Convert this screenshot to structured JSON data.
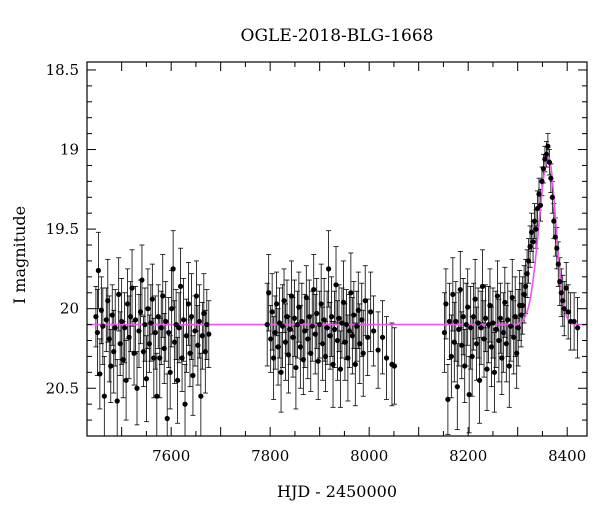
{
  "chart_data": {
    "type": "scatter",
    "title": "OGLE-2018-BLG-1668",
    "xlabel": "HJD - 2450000",
    "ylabel": "I magnitude",
    "xlim": [
      7430,
      8440
    ],
    "ylim": [
      20.8,
      18.45
    ],
    "y_inverted": true,
    "xticks": [
      7600,
      7800,
      8000,
      8200,
      8400
    ],
    "yticks": [
      18.5,
      19,
      19.5,
      20,
      20.5
    ],
    "xtick_labels": [
      "7600",
      "7800",
      "8000",
      "8200",
      "8400"
    ],
    "ytick_labels": [
      "18.5",
      "19",
      "19.5",
      "20",
      "20.5"
    ],
    "grid": false,
    "colors": {
      "data": "#000000",
      "model": "#ee55ee"
    },
    "model": {
      "type": "microlensing",
      "baseline_mag": 20.1,
      "peak_mag": 19.05,
      "peak_hjd": 8362,
      "rise_hjd": 8300,
      "end_hjd": 8420
    },
    "series": [
      {
        "type": "scatter",
        "points": [
          [
            7448,
            20.05,
            0.19
          ],
          [
            7451,
            20.15,
            0.27
          ],
          [
            7453,
            19.76,
            0.24
          ],
          [
            7456,
            20.41,
            0.22
          ],
          [
            7459,
            20.01,
            0.21
          ],
          [
            7462,
            20.11,
            0.24
          ],
          [
            7465,
            20.55,
            0.25
          ],
          [
            7469,
            20.07,
            0.2
          ],
          [
            7472,
            19.95,
            0.26
          ],
          [
            7475,
            20.19,
            0.27
          ],
          [
            7478,
            20.36,
            0.23
          ],
          [
            7481,
            20.04,
            0.19
          ],
          [
            7484,
            20.27,
            0.26
          ],
          [
            7487,
            20.12,
            0.24
          ],
          [
            7491,
            20.58,
            0.26
          ],
          [
            7494,
            19.91,
            0.23
          ],
          [
            7497,
            20.22,
            0.2
          ],
          [
            7500,
            20.08,
            0.27
          ],
          [
            7503,
            20.32,
            0.24
          ],
          [
            7506,
            20.12,
            0.22
          ],
          [
            7509,
            20.45,
            0.25
          ],
          [
            7512,
            19.97,
            0.22
          ],
          [
            7515,
            20.18,
            0.26
          ],
          [
            7518,
            20.05,
            0.22
          ],
          [
            7521,
            19.87,
            0.24
          ],
          [
            7525,
            20.28,
            0.2
          ],
          [
            7528,
            20.07,
            0.21
          ],
          [
            7531,
            20.5,
            0.23
          ],
          [
            7535,
            20.14,
            0.23
          ],
          [
            7538,
            20.02,
            0.2
          ],
          [
            7541,
            19.82,
            0.22
          ],
          [
            7544,
            20.27,
            0.22
          ],
          [
            7547,
            20.1,
            0.23
          ],
          [
            7550,
            20.44,
            0.27
          ],
          [
            7553,
            20.0,
            0.25
          ],
          [
            7556,
            20.22,
            0.18
          ],
          [
            7559,
            20.09,
            0.24
          ],
          [
            7562,
            19.94,
            0.22
          ],
          [
            7565,
            20.31,
            0.25
          ],
          [
            7568,
            20.15,
            0.23
          ],
          [
            7571,
            20.55,
            0.27
          ],
          [
            7574,
            20.05,
            0.2
          ],
          [
            7577,
            20.31,
            0.25
          ],
          [
            7580,
            20.12,
            0.23
          ],
          [
            7583,
            19.92,
            0.26
          ],
          [
            7586,
            20.25,
            0.22
          ],
          [
            7589,
            20.08,
            0.25
          ],
          [
            7592,
            20.69,
            0.28
          ],
          [
            7595,
            20.15,
            0.22
          ],
          [
            7598,
            20.4,
            0.23
          ],
          [
            7601,
            20.0,
            0.24
          ],
          [
            7604,
            19.75,
            0.24
          ],
          [
            7607,
            20.21,
            0.26
          ],
          [
            7610,
            20.1,
            0.22
          ],
          [
            7613,
            20.45,
            0.27
          ],
          [
            7616,
            20.12,
            0.22
          ],
          [
            7619,
            19.86,
            0.24
          ],
          [
            7622,
            20.31,
            0.21
          ],
          [
            7625,
            20.07,
            0.26
          ],
          [
            7628,
            20.6,
            0.25
          ],
          [
            7631,
            20.17,
            0.23
          ],
          [
            7635,
            19.97,
            0.26
          ],
          [
            7638,
            20.28,
            0.21
          ],
          [
            7641,
            20.05,
            0.27
          ],
          [
            7644,
            20.42,
            0.25
          ],
          [
            7648,
            20.14,
            0.22
          ],
          [
            7651,
            19.92,
            0.22
          ],
          [
            7654,
            20.23,
            0.25
          ],
          [
            7657,
            20.08,
            0.23
          ],
          [
            7660,
            20.55,
            0.27
          ],
          [
            7663,
            20.17,
            0.21
          ],
          [
            7666,
            20.03,
            0.25
          ],
          [
            7669,
            20.27,
            0.26
          ],
          [
            7672,
            20.1,
            0.22
          ],
          [
            7676,
            20.16,
            0.21
          ],
          [
            7794,
            20.1,
            0.26
          ],
          [
            7797,
            19.9,
            0.24
          ],
          [
            7801,
            20.19,
            0.21
          ],
          [
            7804,
            20.02,
            0.24
          ],
          [
            7807,
            20.31,
            0.26
          ],
          [
            7810,
            20.15,
            0.23
          ],
          [
            7813,
            19.97,
            0.2
          ],
          [
            7816,
            20.24,
            0.24
          ],
          [
            7819,
            20.09,
            0.22
          ],
          [
            7822,
            20.4,
            0.25
          ],
          [
            7825,
            20.11,
            0.26
          ],
          [
            7828,
            19.95,
            0.2
          ],
          [
            7831,
            20.21,
            0.24
          ],
          [
            7834,
            20.05,
            0.23
          ],
          [
            7837,
            20.29,
            0.24
          ],
          [
            7840,
            20.13,
            0.22
          ],
          [
            7843,
            19.92,
            0.22
          ],
          [
            7846,
            20.18,
            0.25
          ],
          [
            7849,
            20.06,
            0.24
          ],
          [
            7852,
            20.37,
            0.26
          ],
          [
            7855,
            20.1,
            0.21
          ],
          [
            7858,
            19.99,
            0.22
          ],
          [
            7861,
            20.24,
            0.26
          ],
          [
            7864,
            20.08,
            0.24
          ],
          [
            7867,
            20.32,
            0.22
          ],
          [
            7870,
            20.14,
            0.23
          ],
          [
            7873,
            19.93,
            0.2
          ],
          [
            7876,
            20.19,
            0.25
          ],
          [
            7879,
            20.05,
            0.23
          ],
          [
            7882,
            20.28,
            0.24
          ],
          [
            7885,
            20.11,
            0.22
          ],
          [
            7888,
            19.88,
            0.22
          ],
          [
            7891,
            20.16,
            0.25
          ],
          [
            7894,
            20.03,
            0.22
          ],
          [
            7897,
            20.33,
            0.24
          ],
          [
            7900,
            20.1,
            0.21
          ],
          [
            7903,
            19.97,
            0.25
          ],
          [
            7906,
            20.22,
            0.23
          ],
          [
            7909,
            20.07,
            0.26
          ],
          [
            7912,
            20.3,
            0.22
          ],
          [
            7915,
            20.12,
            0.23
          ],
          [
            7918,
            19.75,
            0.24
          ],
          [
            7921,
            20.17,
            0.21
          ],
          [
            7924,
            20.05,
            0.25
          ],
          [
            7927,
            20.35,
            0.27
          ],
          [
            7930,
            20.13,
            0.24
          ],
          [
            7933,
            19.85,
            0.24
          ],
          [
            7936,
            20.2,
            0.25
          ],
          [
            7939,
            20.06,
            0.21
          ],
          [
            7942,
            20.38,
            0.24
          ],
          [
            7945,
            20.09,
            0.22
          ],
          [
            7948,
            19.96,
            0.26
          ],
          [
            7951,
            20.21,
            0.24
          ],
          [
            7954,
            20.1,
            0.22
          ],
          [
            7957,
            20.31,
            0.27
          ],
          [
            7960,
            20.14,
            0.23
          ],
          [
            7963,
            19.9,
            0.25
          ],
          [
            7966,
            20.17,
            0.24
          ],
          [
            7969,
            20.04,
            0.21
          ],
          [
            7972,
            20.35,
            0.26
          ],
          [
            7975,
            20.11,
            0.22
          ],
          [
            7978,
            20.01,
            0.24
          ],
          [
            7981,
            20.22,
            0.25
          ],
          [
            7985,
            20.07,
            0.23
          ],
          [
            7988,
            20.28,
            0.27
          ],
          [
            7992,
            19.95,
            0.22
          ],
          [
            7997,
            20.18,
            0.24
          ],
          [
            8003,
            20.02,
            0.25
          ],
          [
            8009,
            20.14,
            0.22
          ],
          [
            8018,
            20.26,
            0.24
          ],
          [
            8027,
            20.18,
            0.23
          ],
          [
            8035,
            20.31,
            0.26
          ],
          [
            8046,
            20.35,
            0.26
          ],
          [
            8051,
            20.36,
            0.24
          ],
          [
            8152,
            20.15,
            0.25
          ],
          [
            8155,
            19.97,
            0.22
          ],
          [
            8159,
            20.57,
            0.22
          ],
          [
            8162,
            20.08,
            0.24
          ],
          [
            8166,
            20.3,
            0.26
          ],
          [
            8169,
            19.91,
            0.23
          ],
          [
            8172,
            20.21,
            0.25
          ],
          [
            8175,
            20.08,
            0.25
          ],
          [
            8178,
            20.49,
            0.27
          ],
          [
            8181,
            20.13,
            0.23
          ],
          [
            8184,
            19.88,
            0.24
          ],
          [
            8187,
            20.23,
            0.21
          ],
          [
            8190,
            20.05,
            0.24
          ],
          [
            8193,
            20.36,
            0.23
          ],
          [
            8196,
            20.1,
            0.26
          ],
          [
            8199,
            19.99,
            0.24
          ],
          [
            8202,
            20.54,
            0.24
          ],
          [
            8205,
            20.12,
            0.26
          ],
          [
            8208,
            20.3,
            0.25
          ],
          [
            8211,
            20.05,
            0.21
          ],
          [
            8214,
            19.94,
            0.25
          ],
          [
            8217,
            20.22,
            0.23
          ],
          [
            8220,
            20.09,
            0.22
          ],
          [
            8223,
            20.45,
            0.27
          ],
          [
            8226,
            20.12,
            0.23
          ],
          [
            8229,
            19.86,
            0.23
          ],
          [
            8232,
            20.19,
            0.24
          ],
          [
            8235,
            20.06,
            0.21
          ],
          [
            8238,
            20.38,
            0.26
          ],
          [
            8241,
            20.1,
            0.24
          ],
          [
            8244,
            19.98,
            0.23
          ],
          [
            8247,
            20.24,
            0.25
          ],
          [
            8250,
            20.09,
            0.22
          ],
          [
            8253,
            20.4,
            0.25
          ],
          [
            8256,
            20.13,
            0.24
          ],
          [
            8259,
            19.92,
            0.22
          ],
          [
            8262,
            20.2,
            0.26
          ],
          [
            8265,
            20.06,
            0.22
          ],
          [
            8268,
            20.31,
            0.23
          ],
          [
            8271,
            20.15,
            0.25
          ],
          [
            8274,
            19.96,
            0.22
          ],
          [
            8277,
            20.22,
            0.24
          ],
          [
            8280,
            20.07,
            0.23
          ],
          [
            8283,
            20.36,
            0.26
          ],
          [
            8286,
            20.11,
            0.22
          ],
          [
            8289,
            19.93,
            0.24
          ],
          [
            8292,
            20.18,
            0.23
          ],
          [
            8295,
            20.05,
            0.25
          ],
          [
            8298,
            20.28,
            0.22
          ],
          [
            8301,
            20.12,
            0.24
          ],
          [
            8304,
            19.98,
            0.22
          ],
          [
            8307,
            20.04,
            0.2
          ],
          [
            8310,
            19.98,
            0.18
          ],
          [
            8313,
            19.91,
            0.18
          ],
          [
            8316,
            19.86,
            0.17
          ],
          [
            8319,
            19.78,
            0.15
          ],
          [
            8322,
            19.7,
            0.14
          ],
          [
            8325,
            19.61,
            0.13
          ],
          [
            8328,
            19.52,
            0.12
          ],
          [
            8331,
            19.58,
            0.13
          ],
          [
            8334,
            19.45,
            0.11
          ],
          [
            8337,
            19.5,
            0.12
          ],
          [
            8340,
            19.37,
            0.11
          ],
          [
            8343,
            19.28,
            0.1
          ],
          [
            8346,
            19.35,
            0.1
          ],
          [
            8349,
            19.2,
            0.09
          ],
          [
            8352,
            19.12,
            0.09
          ],
          [
            8355,
            19.06,
            0.08
          ],
          [
            8358,
            19.03,
            0.08
          ],
          [
            8361,
            18.98,
            0.08
          ],
          [
            8364,
            19.08,
            0.08
          ],
          [
            8367,
            19.18,
            0.09
          ],
          [
            8370,
            19.3,
            0.1
          ],
          [
            8373,
            19.45,
            0.11
          ],
          [
            8376,
            19.55,
            0.12
          ],
          [
            8379,
            19.62,
            0.13
          ],
          [
            8382,
            19.72,
            0.14
          ],
          [
            8385,
            19.83,
            0.15
          ],
          [
            8388,
            19.9,
            0.15
          ],
          [
            8391,
            19.95,
            0.16
          ],
          [
            8394,
            20.0,
            0.17
          ],
          [
            8398,
            19.87,
            0.16
          ],
          [
            8402,
            20.02,
            0.17
          ],
          [
            8407,
            20.08,
            0.18
          ],
          [
            8414,
            20.08,
            0.18
          ],
          [
            8421,
            20.12,
            0.19
          ]
        ]
      }
    ]
  }
}
